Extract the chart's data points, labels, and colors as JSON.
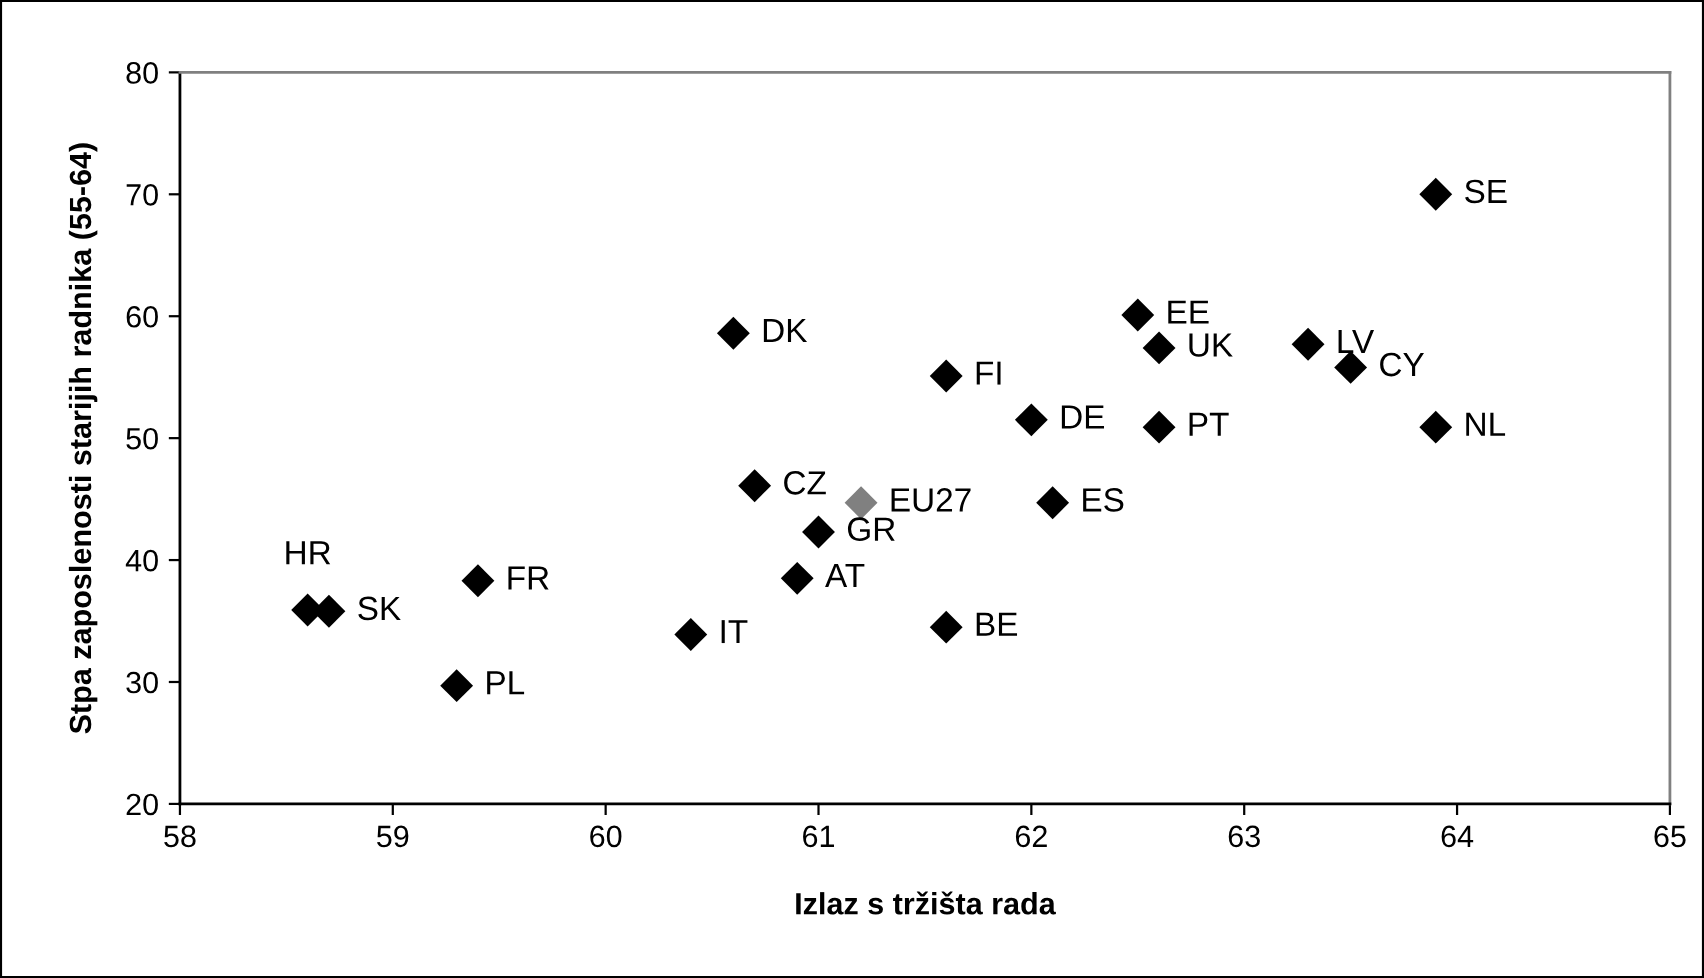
{
  "chart_data": {
    "type": "scatter",
    "xlabel": "Izlaz s tržišta rada",
    "ylabel": "Stpa zaposlenosti starijih radnika (55-64)",
    "x": [
      58.6,
      58.7,
      59.3,
      59.4,
      60.4,
      60.6,
      60.7,
      60.9,
      61.0,
      61.2,
      61.6,
      61.6,
      62.0,
      62.1,
      62.5,
      62.6,
      62.6,
      63.3,
      63.5,
      63.9,
      63.9
    ],
    "values": [
      35.9,
      35.8,
      29.7,
      38.3,
      33.9,
      58.6,
      46.1,
      38.5,
      42.3,
      44.7,
      55.1,
      34.5,
      51.5,
      44.7,
      60.1,
      57.4,
      50.9,
      57.7,
      55.8,
      70.0,
      50.9
    ],
    "colors": [
      "#000000",
      "#000000",
      "#000000",
      "#000000",
      "#000000",
      "#000000",
      "#000000",
      "#000000",
      "#000000",
      "#808080",
      "#000000",
      "#000000",
      "#000000",
      "#000000",
      "#000000",
      "#000000",
      "#000000",
      "#000000",
      "#000000",
      "#000000",
      "#000000"
    ],
    "annotations": [
      {
        "text": "HR",
        "x": 58.6,
        "y": 35.9
      },
      {
        "text": "SK",
        "x": 58.7,
        "y": 35.8
      },
      {
        "text": "PL",
        "x": 59.3,
        "y": 29.7
      },
      {
        "text": "FR",
        "x": 59.4,
        "y": 38.3
      },
      {
        "text": "IT",
        "x": 60.4,
        "y": 33.9
      },
      {
        "text": "DK",
        "x": 60.6,
        "y": 58.6
      },
      {
        "text": "CZ",
        "x": 60.7,
        "y": 46.1
      },
      {
        "text": "AT",
        "x": 60.9,
        "y": 38.5
      },
      {
        "text": "GR",
        "x": 61.0,
        "y": 42.3
      },
      {
        "text": "EU27",
        "x": 61.2,
        "y": 44.7
      },
      {
        "text": "FI",
        "x": 61.6,
        "y": 55.1
      },
      {
        "text": "BE",
        "x": 61.6,
        "y": 34.5
      },
      {
        "text": "DE",
        "x": 62.0,
        "y": 51.5
      },
      {
        "text": "ES",
        "x": 62.1,
        "y": 44.7
      },
      {
        "text": "EE",
        "x": 62.5,
        "y": 60.1
      },
      {
        "text": "UK",
        "x": 62.6,
        "y": 57.4
      },
      {
        "text": "PT",
        "x": 62.6,
        "y": 50.9
      },
      {
        "text": "LV",
        "x": 63.3,
        "y": 57.7
      },
      {
        "text": "CY",
        "x": 63.5,
        "y": 55.8
      },
      {
        "text": "SE",
        "x": 63.9,
        "y": 70.0
      },
      {
        "text": "NL",
        "x": 63.9,
        "y": 50.9
      }
    ],
    "xlim": [
      58,
      65
    ],
    "xticks": [
      58,
      59,
      60,
      61,
      62,
      63,
      64,
      65
    ],
    "ylim": [
      20,
      80
    ],
    "yticks": [
      20,
      30,
      40,
      50,
      60,
      70,
      80
    ],
    "marker": "diamond",
    "grid": false,
    "legend": false
  }
}
